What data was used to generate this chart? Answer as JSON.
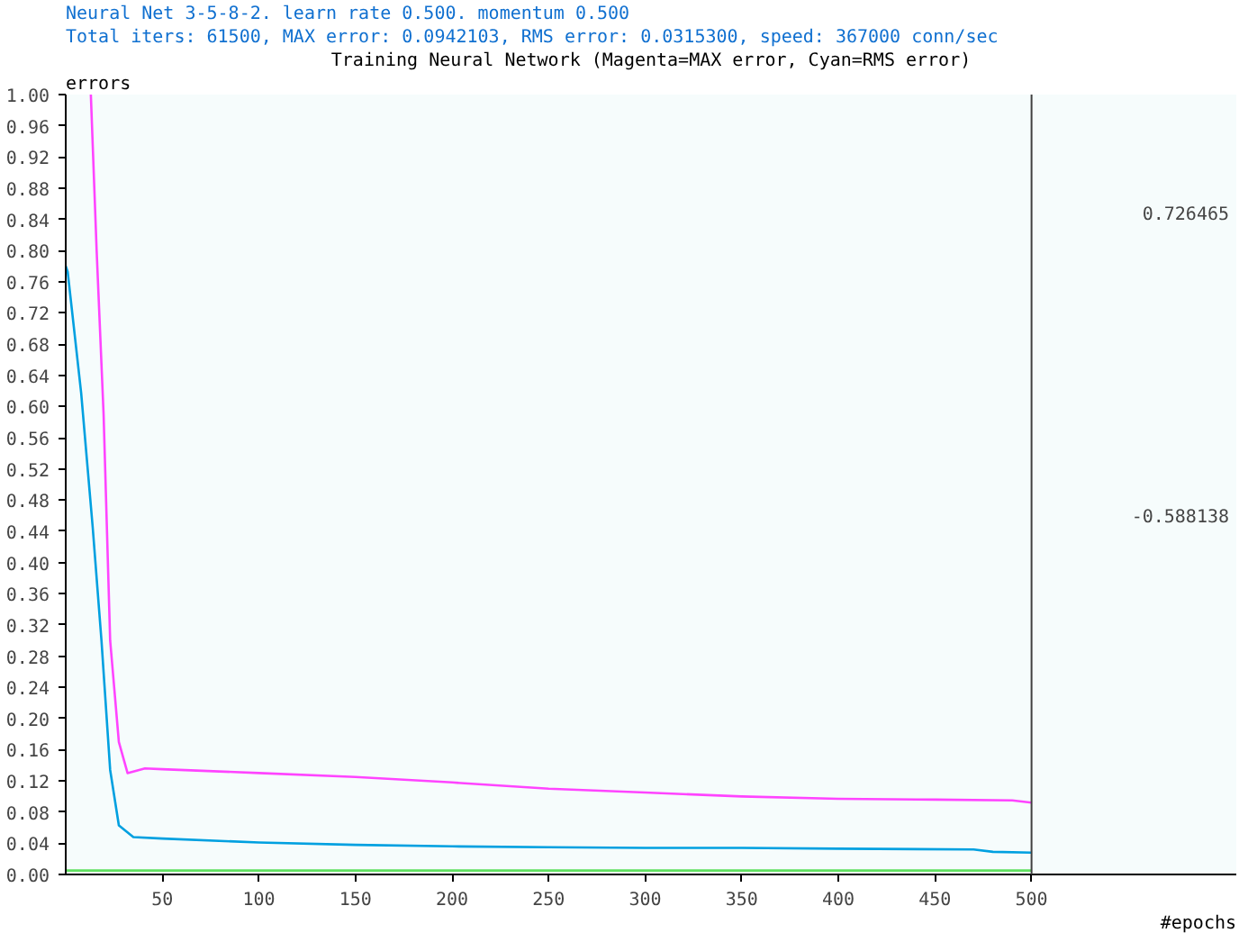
{
  "chart_data": {
    "type": "line",
    "title": "Neural Net 3-5-8-2. learn rate 0.500. momentum 0.500",
    "subtitle": "Total iters:     61500, MAX error:  0.0942103, RMS error:  0.0315300, speed:   367000 conn/sec",
    "ylabel": "errors",
    "xlabel": "#epochs",
    "annotations": [
      "Training Neural Network (Magenta=MAX error, Cyan=RMS error)",
      "0.726465",
      "-0.588138"
    ],
    "xlim": [
      0,
      606
    ],
    "ylim": [
      0,
      1.0
    ],
    "xticks": [
      50,
      100,
      150,
      200,
      250,
      300,
      350,
      400,
      450,
      500
    ],
    "yticks": [
      {
        "value": 0,
        "label": "0.00"
      },
      0.04,
      0.08,
      0.12,
      0.16,
      {
        "value": 0.2,
        "label": "0.20"
      },
      0.24,
      0.28,
      0.32,
      0.36,
      {
        "value": 0.4,
        "label": "0.40"
      },
      0.44,
      0.48,
      0.52,
      0.56,
      {
        "value": 0.6,
        "label": "0.60"
      },
      0.64,
      0.68,
      0.72,
      0.76,
      {
        "value": 0.8,
        "label": "0.80"
      },
      0.84,
      0.88,
      0.92,
      0.96,
      {
        "value": 1.0,
        "label": "1.00"
      }
    ],
    "grid": false,
    "marker": "none",
    "line_style": "solid",
    "ref_lines": [
      {
        "axis": "x",
        "value": 500,
        "label": null,
        "color": "#404040"
      }
    ],
    "series": [
      {
        "color": "#ff44ff",
        "x": [
          13,
          16,
          19.6,
          23,
          27.5,
          32,
          41,
          50,
          100,
          150,
          200,
          250,
          300,
          350,
          400,
          450,
          490,
          500
        ],
        "values": [
          1.0,
          0.8,
          0.59,
          0.3,
          0.17,
          0.13,
          0.136,
          0.135,
          0.13,
          0.125,
          0.118,
          0.11,
          0.105,
          0.1,
          0.097,
          0.096,
          0.095,
          0.092
        ]
      },
      {
        "color": "#00a0e0",
        "x": [
          0,
          1,
          8,
          14,
          18.5,
          23,
          27.5,
          35,
          50,
          100,
          150,
          200,
          250,
          300,
          350,
          400,
          470,
          480,
          500
        ],
        "values": [
          0.78,
          0.773,
          0.617,
          0.444,
          0.3,
          0.134,
          0.063,
          0.048,
          0.046,
          0.041,
          0.038,
          0.036,
          0.035,
          0.034,
          0.034,
          0.033,
          0.032,
          0.029,
          0.028
        ]
      },
      {
        "color": "#60e060",
        "x": [
          0,
          500
        ],
        "values": [
          0.005,
          0.005
        ]
      }
    ]
  }
}
